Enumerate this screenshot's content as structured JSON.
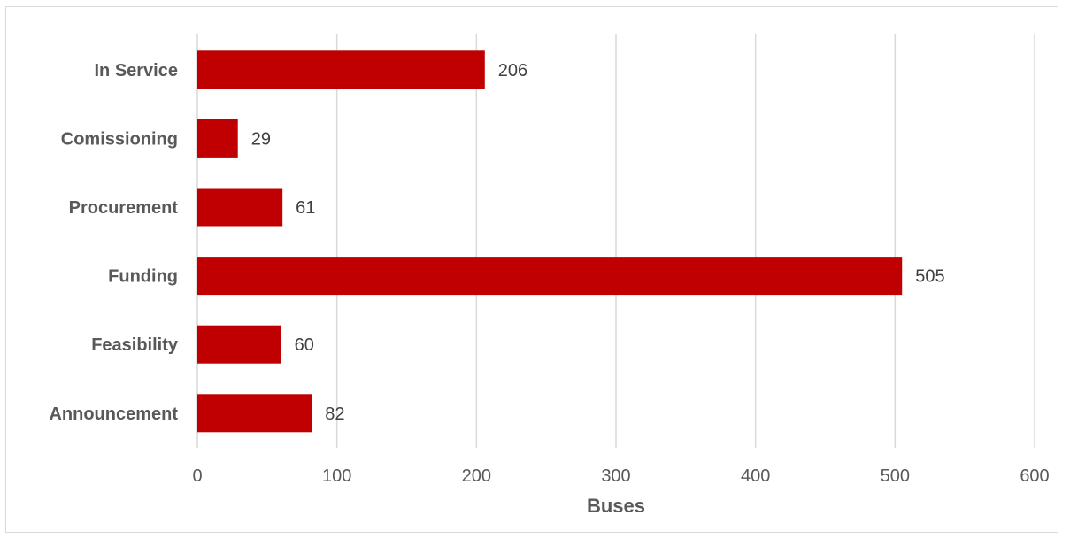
{
  "chart_data": {
    "type": "bar",
    "orientation": "horizontal",
    "categories": [
      "In Service",
      "Comissioning",
      "Procurement",
      "Funding",
      "Feasibility",
      "Announcement"
    ],
    "values": [
      206,
      29,
      61,
      505,
      60,
      82
    ],
    "title": "",
    "xlabel": "Buses",
    "ylabel": "",
    "xlim": [
      0,
      600
    ],
    "xticks": [
      "0",
      "100",
      "200",
      "300",
      "400",
      "500",
      "600"
    ],
    "grid": "vertical",
    "legend": "none",
    "bar_color": "#c00000"
  }
}
